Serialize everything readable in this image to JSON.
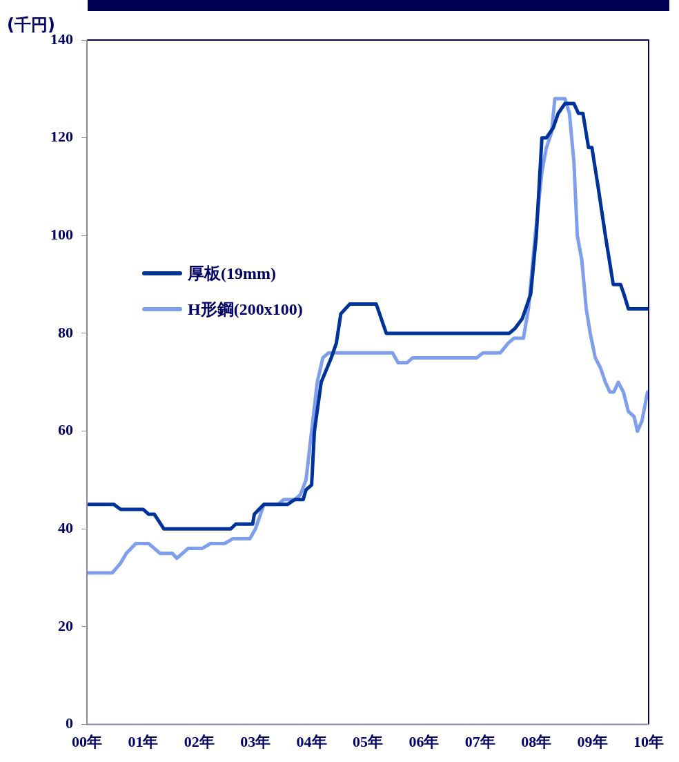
{
  "chart_data": {
    "type": "line",
    "ylabel": "(千円)",
    "xlim": [
      0,
      10
    ],
    "ylim": [
      0,
      140
    ],
    "xticks": [
      {
        "value": 0,
        "label": "00年"
      },
      {
        "value": 1,
        "label": "01年"
      },
      {
        "value": 2,
        "label": "02年"
      },
      {
        "value": 3,
        "label": "03年"
      },
      {
        "value": 4,
        "label": "04年"
      },
      {
        "value": 5,
        "label": "05年"
      },
      {
        "value": 6,
        "label": "06年"
      },
      {
        "value": 7,
        "label": "07年"
      },
      {
        "value": 8,
        "label": "08年"
      },
      {
        "value": 9,
        "label": "09年"
      },
      {
        "value": 10,
        "label": "10年"
      }
    ],
    "yticks": [
      0,
      20,
      40,
      60,
      80,
      100,
      120,
      140
    ],
    "grid": false,
    "legend": "left",
    "marker": "none",
    "line_style": "solid",
    "series": [
      {
        "name": "厚板(19mm)",
        "color": "#003399",
        "x": [
          0,
          0.48,
          0.6,
          1.0,
          1.1,
          1.2,
          1.37,
          2.56,
          2.65,
          2.95,
          2.98,
          3.15,
          3.57,
          3.7,
          3.85,
          3.9,
          4.0,
          4.05,
          4.17,
          4.35,
          4.44,
          4.52,
          4.68,
          5.15,
          5.33,
          7.52,
          7.62,
          7.75,
          7.9,
          8.0,
          8.1,
          8.18,
          8.3,
          8.39,
          8.51,
          8.67,
          8.75,
          8.83,
          8.93,
          8.99,
          9.1,
          9.23,
          9.3,
          9.37,
          9.5,
          9.56,
          9.64,
          10
        ],
        "values": [
          45,
          45,
          44,
          44,
          43,
          43,
          40,
          40,
          41,
          41,
          43,
          45,
          45,
          46,
          46,
          48,
          49,
          60,
          70,
          75,
          78,
          84,
          86,
          86,
          80,
          80,
          81,
          83,
          88,
          100,
          120,
          120,
          122,
          125,
          127,
          127,
          125,
          125,
          118,
          118,
          110,
          100,
          95,
          90,
          90,
          88,
          85,
          85
        ]
      },
      {
        "name": "H形鋼(200x100)",
        "color": "#7f9fec",
        "x": [
          0,
          0.45,
          0.6,
          0.7,
          0.87,
          1.1,
          1.3,
          1.52,
          1.6,
          1.8,
          2.05,
          2.2,
          2.45,
          2.6,
          2.9,
          3.0,
          3.15,
          3.4,
          3.5,
          3.7,
          3.8,
          3.9,
          4.0,
          4.1,
          4.2,
          4.3,
          5.44,
          5.54,
          5.7,
          5.8,
          6.94,
          7.05,
          7.36,
          7.5,
          7.6,
          7.77,
          7.86,
          7.98,
          8.1,
          8.18,
          8.27,
          8.33,
          8.51,
          8.59,
          8.67,
          8.73,
          8.81,
          8.89,
          8.96,
          9.05,
          9.14,
          9.23,
          9.31,
          9.38,
          9.46,
          9.55,
          9.64,
          9.74,
          9.8,
          9.88,
          9.98
        ],
        "values": [
          31,
          31,
          33,
          35,
          37,
          37,
          35,
          35,
          34,
          36,
          36,
          37,
          37,
          38,
          38,
          40,
          45,
          45,
          46,
          46,
          47,
          50,
          60,
          70,
          75,
          76,
          76,
          74,
          74,
          75,
          75,
          76,
          76,
          78,
          79,
          79,
          85,
          100,
          113,
          118,
          121,
          128,
          128,
          125,
          115,
          100,
          95,
          85,
          80,
          75,
          73,
          70,
          68,
          68,
          70,
          68,
          64,
          63,
          60,
          62,
          68
        ]
      }
    ]
  }
}
